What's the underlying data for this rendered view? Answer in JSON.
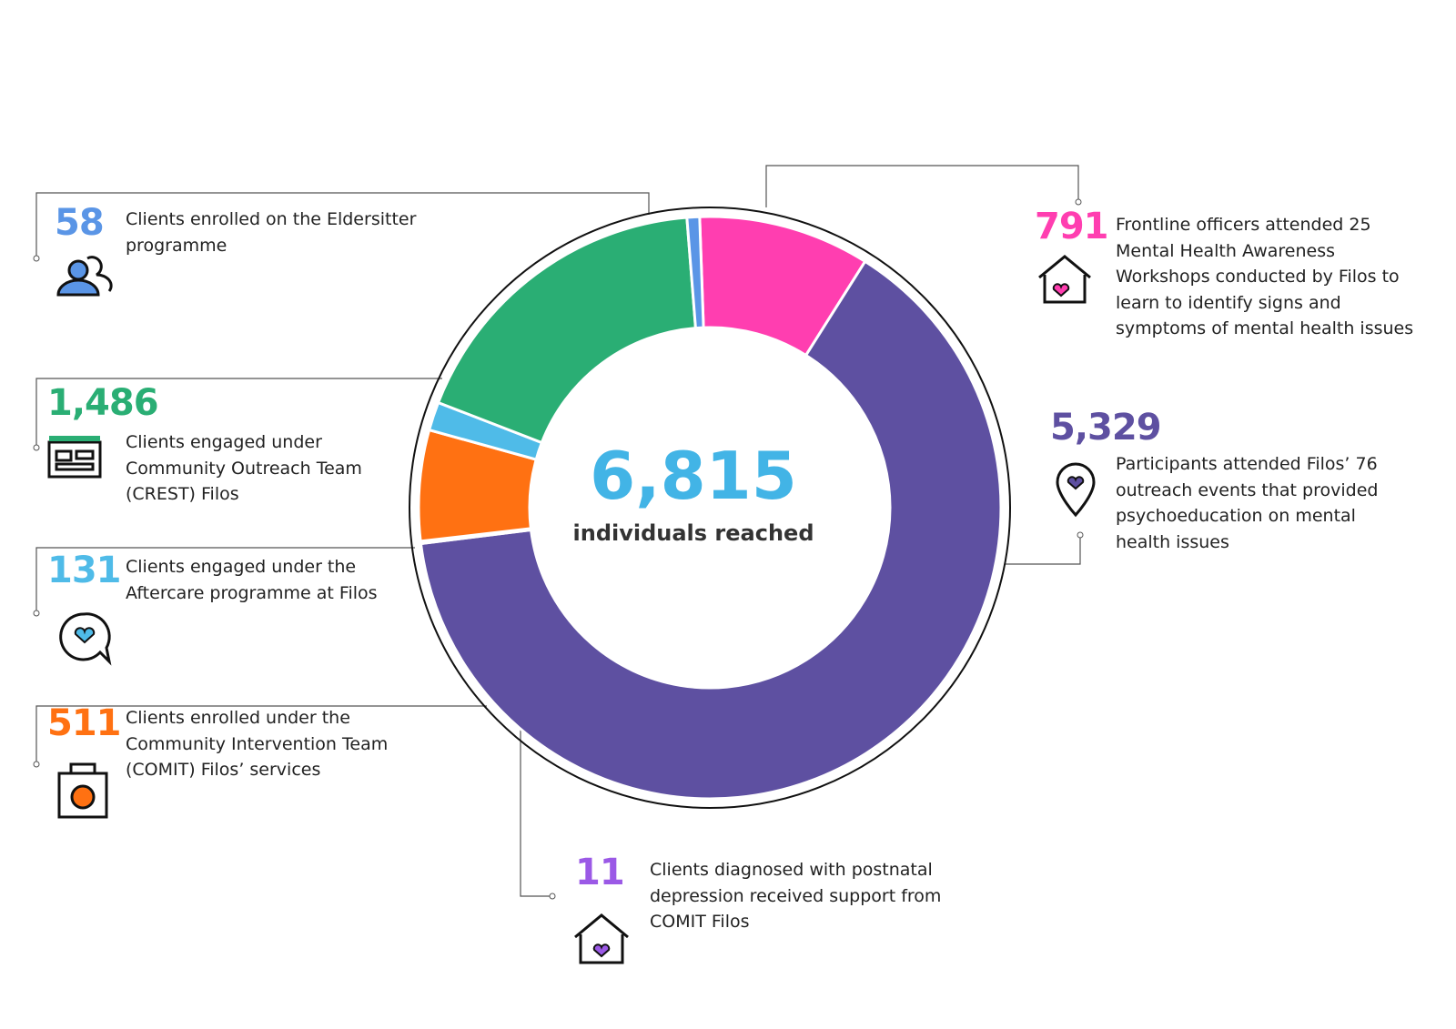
{
  "chart_data": {
    "type": "donut",
    "center_value": "6,815",
    "center_label": "individuals reached",
    "categories": [
      "Frontline officers attended 25 Mental Health Awareness Workshops conducted by Filos to learn to identify signs and symptoms of mental health issues",
      "Participants attended Filos’ 76 outreach events that provided psychoeducation on mental health issues",
      "Clients diagnosed with postnatal depression received support from COMIT Filos",
      "Clients enrolled under the Community Intervention Team (COMIT) Filos’ services",
      "Clients engaged under the Aftercare programme at Filos",
      "Clients engaged under Community Outreach Team (CREST) Filos",
      "Clients enrolled on the Eldersitter programme"
    ],
    "values": [
      791,
      5329,
      11,
      511,
      131,
      1486,
      58
    ],
    "value_labels": [
      "791",
      "5,329",
      "11",
      "511",
      "131",
      "1,486",
      "58"
    ],
    "colors": [
      "#ff3eb0",
      "#5e50a1",
      "#9b59e6",
      "#ff7112",
      "#4fbbe8",
      "#2aae74",
      "#5a95e6"
    ]
  }
}
